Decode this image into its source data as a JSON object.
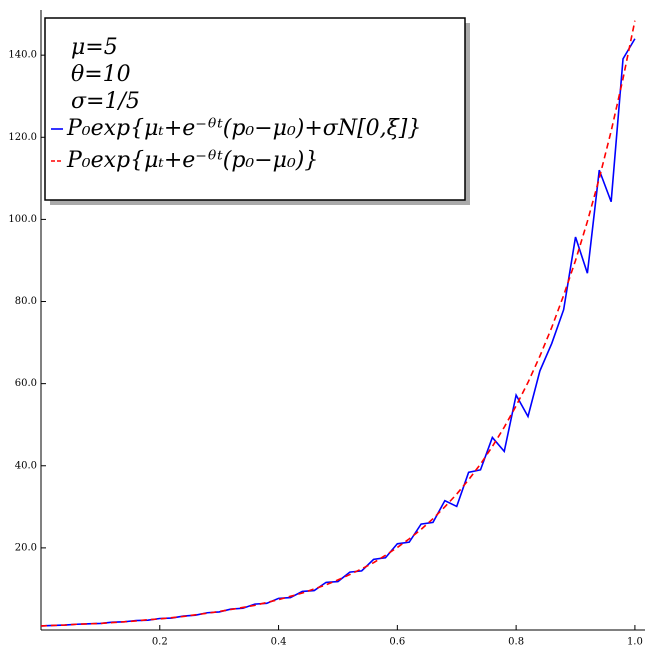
{
  "chart_data": {
    "type": "line",
    "annotations": [
      "μ=5",
      "θ=10",
      "σ=1/5"
    ],
    "x": [
      0,
      0.02,
      0.04,
      0.06,
      0.08,
      0.1,
      0.12,
      0.14,
      0.16,
      0.18,
      0.2,
      0.22,
      0.24,
      0.26,
      0.28,
      0.3,
      0.32,
      0.34,
      0.36,
      0.38,
      0.4,
      0.42,
      0.44,
      0.46,
      0.48,
      0.5,
      0.52,
      0.54,
      0.56,
      0.58,
      0.6,
      0.62,
      0.64,
      0.66,
      0.68,
      0.7,
      0.72,
      0.74,
      0.76,
      0.78,
      0.8,
      0.82,
      0.84,
      0.86,
      0.88,
      0.9,
      0.92,
      0.94,
      0.96,
      0.98,
      1
    ],
    "series": [
      {
        "name": "P₀exp{μₜ+e⁻ᶿᵗ(p₀−μ₀)+σN[0,ξ]}",
        "color": "#0000ff",
        "dashed": false,
        "values": [
          1.0,
          1.1,
          1.2,
          1.4,
          1.5,
          1.6,
          1.9,
          2.0,
          2.3,
          2.4,
          2.8,
          2.9,
          3.4,
          3.6,
          4.2,
          4.4,
          5.1,
          5.3,
          6.3,
          6.5,
          7.7,
          7.9,
          9.4,
          9.6,
          11.6,
          11.8,
          14.1,
          14.4,
          17.2,
          17.6,
          21.0,
          21.4,
          25.8,
          26.2,
          31.5,
          30.1,
          38.4,
          39.0,
          46.9,
          43.5,
          57.2,
          52.0,
          63.1,
          69.8,
          78.0,
          95.7,
          86.9,
          112.0,
          104.3,
          139.1,
          144.0
        ]
      },
      {
        "name": "P₀exp{μₜ+e⁻ᶿᵗ(p₀−μ₀)}",
        "color": "#ff0000",
        "dashed": true,
        "values": [
          1.0,
          1.1,
          1.2,
          1.4,
          1.5,
          1.6,
          1.8,
          2.0,
          2.2,
          2.5,
          2.7,
          3.0,
          3.3,
          3.7,
          4.1,
          4.5,
          5.0,
          5.5,
          6.0,
          6.7,
          7.4,
          8.2,
          9.0,
          10.0,
          11.0,
          12.2,
          13.5,
          14.9,
          16.4,
          18.2,
          20.1,
          22.2,
          24.5,
          27.1,
          30.0,
          33.1,
          36.6,
          40.4,
          44.7,
          49.4,
          54.6,
          60.3,
          66.7,
          73.7,
          81.5,
          90.0,
          99.5,
          110.0,
          121.5,
          134.3,
          148.4
        ]
      }
    ],
    "xlim": [
      0,
      1.017
    ],
    "ylim": [
      0,
      151
    ],
    "xticks": [
      0.2,
      0.4,
      0.6,
      0.8,
      {
        "value": 1,
        "label": "1.0"
      }
    ],
    "yticks": [
      {
        "value": 20,
        "label": "20.0"
      },
      {
        "value": 40,
        "label": "40.0"
      },
      {
        "value": 60,
        "label": "60.0"
      },
      {
        "value": 80,
        "label": "80.0"
      },
      {
        "value": 100,
        "label": "100.0"
      },
      {
        "value": 120,
        "label": "120.0"
      },
      {
        "value": 140,
        "label": "140.0"
      }
    ],
    "legend": "upper left"
  }
}
